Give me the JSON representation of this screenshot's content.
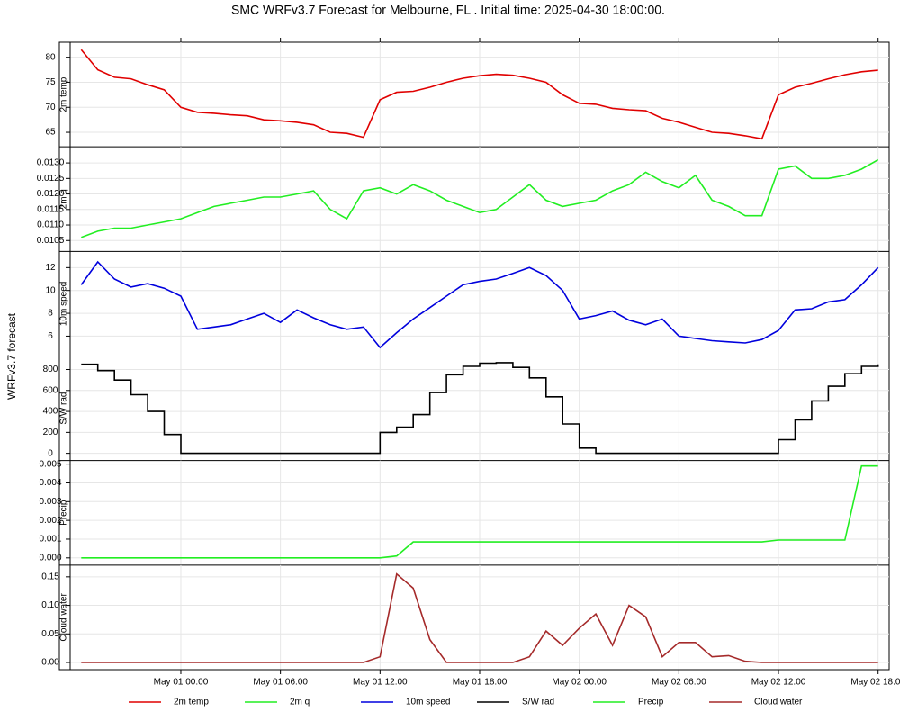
{
  "title": "SMC WRFv3.7 Forecast for Melbourne, FL           .  Initial time:  2025-04-30 18:00:00.",
  "ylabel": "WRFv3.7 forecast",
  "x": [
    "2025-04-30 18:00",
    "2025-04-30 19:00",
    "2025-04-30 20:00",
    "2025-04-30 21:00",
    "2025-04-30 22:00",
    "2025-04-30 23:00",
    "2025-05-01 00:00",
    "2025-05-01 01:00",
    "2025-05-01 02:00",
    "2025-05-01 03:00",
    "2025-05-01 04:00",
    "2025-05-01 05:00",
    "2025-05-01 06:00",
    "2025-05-01 07:00",
    "2025-05-01 08:00",
    "2025-05-01 09:00",
    "2025-05-01 10:00",
    "2025-05-01 11:00",
    "2025-05-01 12:00",
    "2025-05-01 13:00",
    "2025-05-01 14:00",
    "2025-05-01 15:00",
    "2025-05-01 16:00",
    "2025-05-01 17:00",
    "2025-05-01 18:00",
    "2025-05-01 19:00",
    "2025-05-01 20:00",
    "2025-05-01 21:00",
    "2025-05-01 22:00",
    "2025-05-01 23:00",
    "2025-05-02 00:00",
    "2025-05-02 01:00",
    "2025-05-02 02:00",
    "2025-05-02 03:00",
    "2025-05-02 04:00",
    "2025-05-02 05:00",
    "2025-05-02 06:00",
    "2025-05-02 07:00",
    "2025-05-02 08:00",
    "2025-05-02 09:00",
    "2025-05-02 10:00",
    "2025-05-02 11:00",
    "2025-05-02 12:00",
    "2025-05-02 13:00",
    "2025-05-02 14:00",
    "2025-05-02 15:00",
    "2025-05-02 16:00",
    "2025-05-02 17:00",
    "2025-05-02 18:00"
  ],
  "xlim": [
    "2025-04-30 17:20",
    "2025-05-02 18:40"
  ],
  "xticks": [
    {
      "value": "2025-05-01 00:00",
      "label": "May 01 00:00"
    },
    {
      "value": "2025-05-01 06:00",
      "label": "May 01 06:00"
    },
    {
      "value": "2025-05-01 12:00",
      "label": "May 01 12:00"
    },
    {
      "value": "2025-05-01 18:00",
      "label": "May 01 18:00"
    },
    {
      "value": "2025-05-02 00:00",
      "label": "May 02 00:00"
    },
    {
      "value": "2025-05-02 06:00",
      "label": "May 02 06:00"
    },
    {
      "value": "2025-05-02 12:00",
      "label": "May 02 12:00"
    },
    {
      "value": "2025-05-02 18:00",
      "label": "May 02 18:00"
    }
  ],
  "grid": true,
  "chart_data": [
    {
      "type": "line",
      "ylabel": "2m temp",
      "ylim": [
        62.1,
        83.0
      ],
      "yticks": [
        65,
        70,
        75,
        80
      ],
      "series": [
        {
          "name": "2m temp",
          "color": "#e00000",
          "values": [
            81.5,
            77.5,
            76.0,
            75.7,
            74.5,
            73.5,
            70.0,
            69.0,
            68.8,
            68.5,
            68.3,
            67.5,
            67.3,
            67.0,
            66.5,
            65.0,
            64.8,
            64.0,
            71.5,
            73.0,
            73.2,
            74.0,
            75.0,
            75.8,
            76.3,
            76.6,
            76.4,
            75.8,
            75.0,
            72.5,
            70.8,
            70.6,
            69.8,
            69.5,
            69.3,
            67.8,
            67.0,
            66.0,
            65.0,
            64.8,
            64.3,
            63.7,
            72.5,
            74.0,
            74.8,
            75.7,
            76.5,
            77.1,
            77.4
          ]
        }
      ]
    },
    {
      "type": "line",
      "ylabel": "2m q",
      "ylim": [
        0.01015,
        0.01352
      ],
      "yticks": [
        0.0105,
        {
          "value": 0.011,
          "label": "0.0110"
        },
        0.0115,
        {
          "value": 0.012,
          "label": "0.0120"
        },
        0.0125,
        {
          "value": 0.013,
          "label": "0.0130"
        }
      ],
      "series": [
        {
          "name": "2m q",
          "color": "#22ee22",
          "values": [
            0.0106,
            0.0108,
            0.0109,
            0.0109,
            0.011,
            0.0111,
            0.0112,
            0.0114,
            0.0116,
            0.0117,
            0.0118,
            0.0119,
            0.0119,
            0.012,
            0.0121,
            0.0115,
            0.0112,
            0.0121,
            0.0122,
            0.012,
            0.0123,
            0.0121,
            0.0118,
            0.0116,
            0.0114,
            0.0115,
            0.0119,
            0.0123,
            0.0118,
            0.0116,
            0.0117,
            0.0118,
            0.0121,
            0.0123,
            0.0127,
            0.0124,
            0.0122,
            0.0126,
            0.0118,
            0.0116,
            0.0113,
            0.0113,
            0.0128,
            0.0129,
            0.0125,
            0.0125,
            0.0126,
            0.0128,
            0.0131
          ]
        }
      ]
    },
    {
      "type": "line",
      "ylabel": "10m speed",
      "ylim": [
        4.26,
        13.42
      ],
      "yticks": [
        6,
        8,
        10,
        12
      ],
      "series": [
        {
          "name": "10m speed",
          "color": "#0000dd",
          "values": [
            10.5,
            12.5,
            11.0,
            10.3,
            10.6,
            10.2,
            9.5,
            6.6,
            6.8,
            7.0,
            7.5,
            8.0,
            7.2,
            8.3,
            7.6,
            7.0,
            6.6,
            6.8,
            5.0,
            6.3,
            7.5,
            8.5,
            9.5,
            10.5,
            10.8,
            11.0,
            11.5,
            12.0,
            11.3,
            10.0,
            7.5,
            7.8,
            8.2,
            7.4,
            7.0,
            7.5,
            6.0,
            5.8,
            5.6,
            5.5,
            5.4,
            5.7,
            6.5,
            8.3,
            8.4,
            9.0,
            9.2,
            10.5,
            12.0
          ]
        }
      ]
    },
    {
      "type": "step",
      "ylabel": "S/W rad",
      "ylim": [
        -69,
        929
      ],
      "yticks": [
        0,
        200,
        400,
        600,
        800
      ],
      "series": [
        {
          "name": "S/W rad",
          "color": "#000000",
          "values": [
            850,
            790,
            700,
            560,
            400,
            180,
            0,
            0,
            0,
            0,
            0,
            0,
            0,
            0,
            0,
            0,
            0,
            0,
            200,
            250,
            370,
            580,
            750,
            830,
            860,
            865,
            820,
            720,
            540,
            280,
            50,
            0,
            0,
            0,
            0,
            0,
            0,
            0,
            0,
            0,
            0,
            0,
            130,
            320,
            500,
            640,
            760,
            830,
            850
          ]
        }
      ]
    },
    {
      "type": "line",
      "ylabel": "Precip",
      "ylim": [
        -0.000385,
        0.00519
      ],
      "yticks": [
        {
          "value": 0,
          "label": "0.000"
        },
        0.001,
        0.002,
        0.003,
        0.004,
        0.005
      ],
      "series": [
        {
          "name": "Precip",
          "color": "#22ee22",
          "values": [
            0,
            0,
            0,
            0,
            0,
            0,
            0,
            0,
            0,
            0,
            0,
            0,
            0,
            0,
            0,
            0,
            0,
            0,
            0,
            0.0001,
            0.00085,
            0.00085,
            0.00085,
            0.00085,
            0.00085,
            0.00085,
            0.00085,
            0.00085,
            0.00085,
            0.00085,
            0.00085,
            0.00085,
            0.00085,
            0.00085,
            0.00085,
            0.00085,
            0.00085,
            0.00085,
            0.00085,
            0.00085,
            0.00085,
            0.00085,
            0.00095,
            0.00095,
            0.00095,
            0.00095,
            0.00095,
            0.0049,
            0.0049
          ]
        }
      ]
    },
    {
      "type": "line",
      "ylabel": "Cloud water",
      "ylim": [
        -0.0126,
        0.1705
      ],
      "yticks": [
        {
          "value": 0,
          "label": "0.00"
        },
        0.05,
        {
          "value": 0.1,
          "label": "0.10"
        },
        0.15
      ],
      "series": [
        {
          "name": "Cloud water",
          "color": "#a52a2a",
          "values": [
            0,
            0,
            0,
            0,
            0,
            0,
            0,
            0,
            0,
            0,
            0,
            0,
            0,
            0,
            0,
            0,
            0,
            0,
            0.01,
            0.155,
            0.13,
            0.04,
            0,
            0,
            0,
            0,
            0,
            0.01,
            0.055,
            0.03,
            0.06,
            0.085,
            0.03,
            0.1,
            0.08,
            0.01,
            0.035,
            0.035,
            0.01,
            0.012,
            0.002,
            0,
            0,
            0,
            0,
            0,
            0,
            0,
            0
          ]
        }
      ]
    }
  ]
}
